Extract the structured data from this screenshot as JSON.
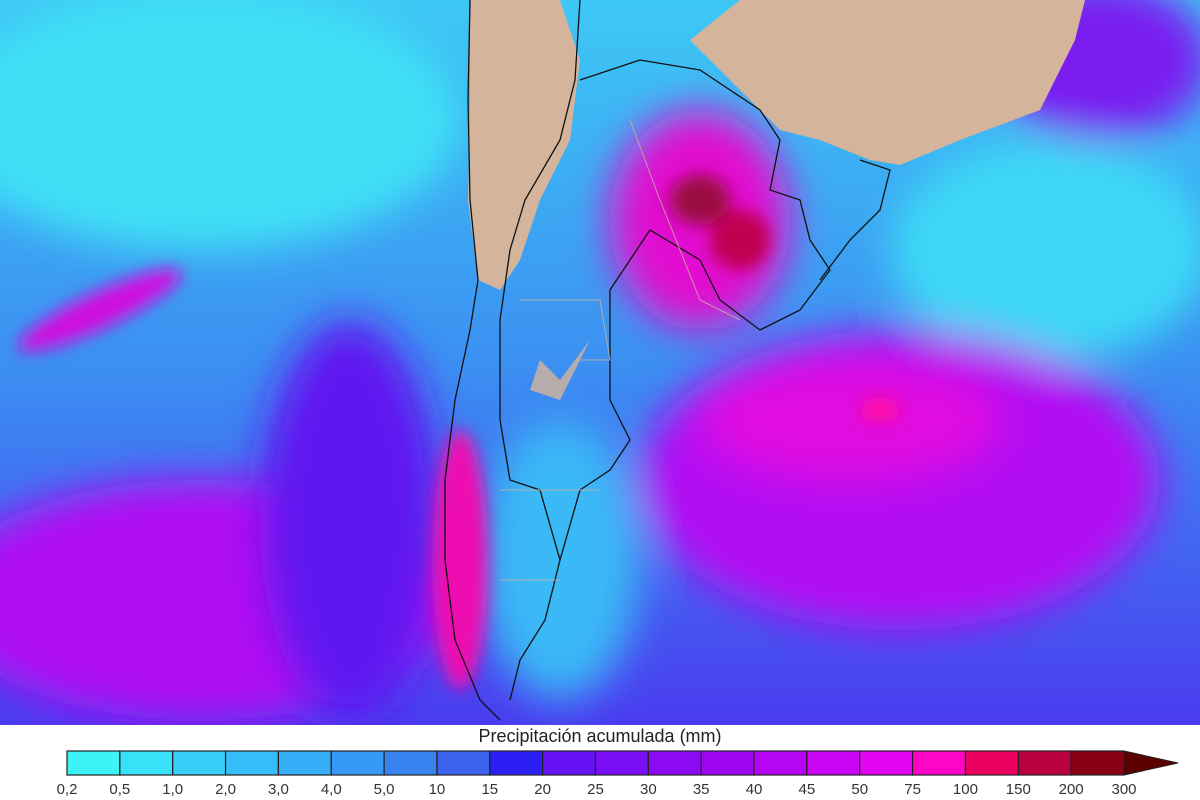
{
  "legend": {
    "title": "Precipitación acumulada (mm)",
    "labels": [
      "0,2",
      "0,5",
      "1,0",
      "2,0",
      "3,0",
      "4,0",
      "5,0",
      "10",
      "15",
      "20",
      "25",
      "30",
      "35",
      "40",
      "45",
      "50",
      "75",
      "100",
      "150",
      "200",
      "300"
    ],
    "colors": [
      "#3cf4f6",
      "#38e0f8",
      "#35cff8",
      "#35bdf8",
      "#35adf7",
      "#3699f4",
      "#3783f0",
      "#3c63ef",
      "#2c1ff3",
      "#6511f4",
      "#7a0ef4",
      "#8c09f4",
      "#9f06f4",
      "#b505f4",
      "#cb03f4",
      "#e205f4",
      "#fc07c8",
      "#ea005f",
      "#b8003e",
      "#860016"
    ],
    "overflow_color": "#5a0000"
  },
  "map": {
    "land_color": "#d4b49a",
    "ocean_light": "#40e8f5",
    "ocean_base": "#3a8ef2"
  }
}
